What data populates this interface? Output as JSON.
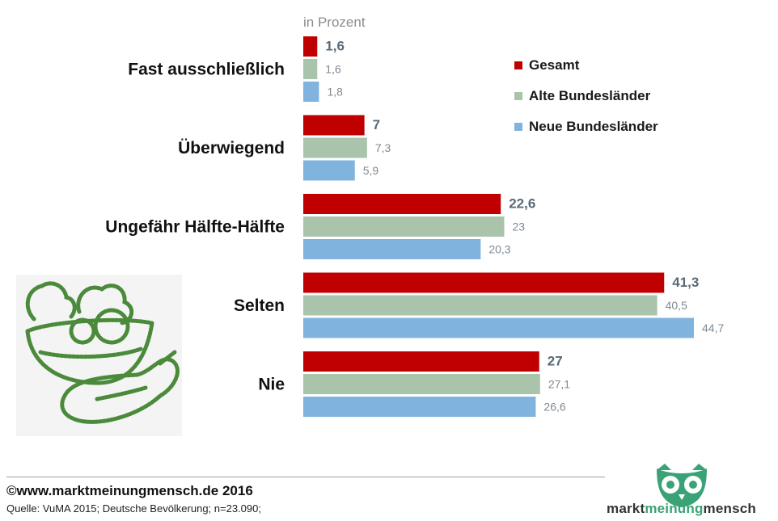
{
  "unit_label": "in Prozent",
  "legend": [
    {
      "label": "Gesamt",
      "color": "#c00000"
    },
    {
      "label": "Alte Bundesländer",
      "color": "#a9c4ab"
    },
    {
      "label": "Neue Bundesländer",
      "color": "#80b4de"
    }
  ],
  "chart_data": {
    "type": "bar",
    "orientation": "horizontal",
    "categories": [
      "Fast ausschließlich",
      "Überwiegend",
      "Ungefähr Hälfte-Hälfte",
      "Selten",
      "Nie"
    ],
    "series": [
      {
        "name": "Gesamt",
        "color": "#c00000",
        "values": [
          1.6,
          7,
          22.6,
          41.3,
          27
        ],
        "labels": [
          "1,6",
          "7",
          "22,6",
          "41,3",
          "27"
        ]
      },
      {
        "name": "Alte Bundesländer",
        "color": "#a9c4ab",
        "values": [
          1.6,
          7.3,
          23,
          40.5,
          27.1
        ],
        "labels": [
          "1,6",
          "7,3",
          "23",
          "40,5",
          "27,1"
        ]
      },
      {
        "name": "Neue Bundesländer",
        "color": "#80b4de",
        "values": [
          1.8,
          5.9,
          20.3,
          44.7,
          26.6
        ],
        "labels": [
          "1,8",
          "5,9",
          "20,3",
          "44,7",
          "26,6"
        ]
      }
    ],
    "title": "",
    "xlabel": "",
    "ylabel": "",
    "xlim": [
      0,
      45
    ],
    "grid": false,
    "legend_position": "top-right"
  },
  "footer": {
    "copyright": "©www.marktmeinungmensch.de 2016",
    "source": "Quelle: VuMA 2015; Deutsche Bevölkerung; n=23.090;"
  },
  "brand": {
    "part1": "markt",
    "part2": "meinung",
    "part3": "mensch"
  },
  "icons": {
    "illustration": "vegetable-basket-icon",
    "logo": "owl-logo-icon"
  }
}
